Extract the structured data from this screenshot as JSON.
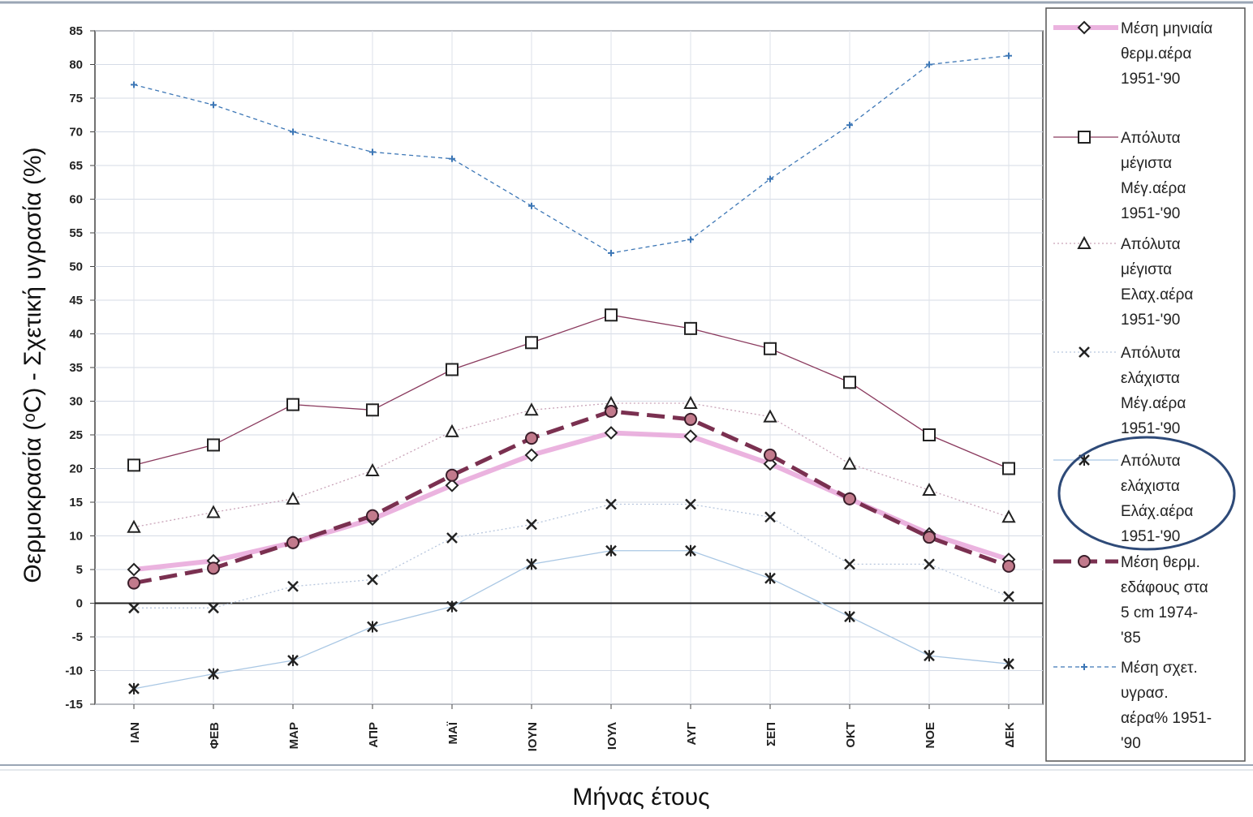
{
  "chart_data": {
    "type": "line",
    "xlabel": "Μήνας έτους",
    "ylabel": "Θερμοκρασία (ᵒC)    - Σχετική υγρασία (%)",
    "categories": [
      "ΙΑΝ",
      "ΦΕΒ",
      "ΜΑΡ",
      "ΑΠΡ",
      "ΜΑΪ",
      "ΙΟΥΝ",
      "ΙΟΥΛ",
      "ΑΥΓ",
      "ΣΕΠ",
      "ΟΚΤ",
      "ΝΟΕ",
      "ΔΕΚ"
    ],
    "ylim": [
      -15,
      85
    ],
    "yticks": [
      85,
      80,
      75,
      70,
      65,
      60,
      55,
      50,
      45,
      40,
      35,
      30,
      25,
      20,
      15,
      10,
      5,
      0,
      -5,
      -10,
      -15
    ],
    "grid": true,
    "legend_position": "right",
    "series": [
      {
        "name": [
          "Μέση μηνιαία",
          "θερμ.αέρα",
          "1951-'90"
        ],
        "marker": "diamond",
        "color": "#e8a6d9",
        "line": "solid-thick",
        "values": [
          5,
          6.3,
          9,
          12.5,
          17.5,
          22,
          25.3,
          24.8,
          20.7,
          15.5,
          10.3,
          6.5
        ]
      },
      {
        "name": [
          "Απόλυτα",
          "μέγιστα",
          "Μέγ.αέρα",
          "1951-'90"
        ],
        "marker": "square",
        "color": "#8a3a5e",
        "line": "solid-thin",
        "values": [
          20.5,
          23.5,
          29.5,
          28.7,
          34.7,
          38.7,
          42.8,
          40.8,
          37.8,
          32.8,
          25,
          20
        ]
      },
      {
        "name": [
          "Απόλυτα",
          "μέγιστα",
          "Ελαχ.αέρα",
          "1951-'90"
        ],
        "marker": "triangle",
        "color": "#c9a3b8",
        "line": "dotted",
        "values": [
          11.3,
          13.5,
          15.5,
          19.7,
          25.5,
          28.7,
          29.7,
          29.7,
          27.7,
          20.7,
          16.8,
          12.8
        ]
      },
      {
        "name": [
          "Απόλυτα",
          "ελάχιστα",
          "Μέγ.αέρα",
          "1951-'90"
        ],
        "marker": "x",
        "color": "#b7c6dd",
        "line": "dotted",
        "values": [
          -0.7,
          -0.7,
          2.5,
          3.5,
          9.7,
          11.7,
          14.7,
          14.7,
          12.8,
          5.8,
          5.8,
          1
        ]
      },
      {
        "name": [
          "Απόλυτα",
          "ελάχιστα",
          "Ελάχ.αέρα",
          "1951-'90"
        ],
        "marker": "asterisk",
        "color": "#a9c7e4",
        "line": "solid-thin",
        "values": [
          -12.7,
          -10.5,
          -8.5,
          -3.5,
          -0.5,
          5.8,
          7.8,
          7.8,
          3.7,
          -2,
          -7.8,
          -9
        ]
      },
      {
        "name": [
          "Μέση θερμ.",
          "εδάφους στα",
          "5  cm 1974-",
          "'85"
        ],
        "marker": "circle",
        "color": "#7a3050",
        "line": "dashed-thick",
        "values": [
          3,
          5.2,
          9,
          13,
          19,
          24.5,
          28.5,
          27.3,
          22,
          15.5,
          9.8,
          5.5
        ]
      },
      {
        "name": [
          "Μέση σχετ.",
          "υγρασ.",
          "αέρα% 1951-",
          "'90"
        ],
        "marker": "plus",
        "color": "#3d77b6",
        "line": "dashed-thin",
        "values": [
          77,
          74,
          70,
          67,
          66,
          59,
          52,
          54,
          63,
          71,
          80,
          81.3
        ]
      }
    ]
  }
}
